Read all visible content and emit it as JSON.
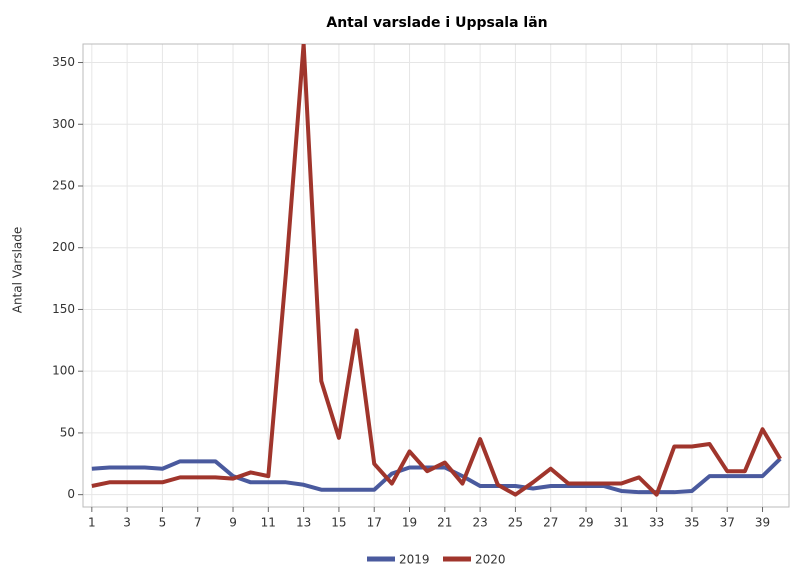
{
  "chart_data": {
    "type": "line",
    "title": "Antal varslade i Uppsala län",
    "ylabel": "Antal Varslade",
    "x": [
      1,
      2,
      3,
      4,
      5,
      6,
      7,
      8,
      9,
      10,
      11,
      12,
      13,
      14,
      15,
      16,
      17,
      18,
      19,
      20,
      21,
      22,
      23,
      24,
      25,
      26,
      27,
      28,
      29,
      30,
      31,
      32,
      33,
      34,
      35,
      36,
      37,
      38,
      39,
      40
    ],
    "series": [
      {
        "name": "2019",
        "color": "#4a5a9e",
        "values": [
          21,
          22,
          22,
          22,
          21,
          27,
          27,
          27,
          15,
          10,
          10,
          10,
          8,
          4,
          4,
          4,
          4,
          17,
          22,
          22,
          22,
          15,
          7,
          7,
          7,
          5,
          7,
          7,
          7,
          7,
          3,
          2,
          2,
          2,
          3,
          15,
          15,
          15,
          15,
          29
        ]
      },
      {
        "name": "2020",
        "color": "#a0352c",
        "values": [
          7,
          10,
          10,
          10,
          10,
          14,
          14,
          14,
          13,
          18,
          15,
          180,
          365,
          92,
          46,
          133,
          25,
          9,
          35,
          19,
          26,
          9,
          45,
          8,
          0,
          10,
          21,
          9,
          9,
          9,
          9,
          14,
          0,
          39,
          39,
          41,
          19,
          19,
          53,
          29
        ]
      }
    ],
    "xlim": [
      0.5,
      40.5
    ],
    "xticks": [
      1,
      3,
      5,
      7,
      9,
      11,
      13,
      15,
      17,
      19,
      21,
      23,
      25,
      27,
      29,
      31,
      33,
      35,
      37,
      39
    ],
    "ylim": [
      -10,
      365
    ],
    "yticks": [
      0,
      50,
      100,
      150,
      200,
      250,
      300,
      350
    ],
    "grid": true,
    "legend": "bottom"
  }
}
